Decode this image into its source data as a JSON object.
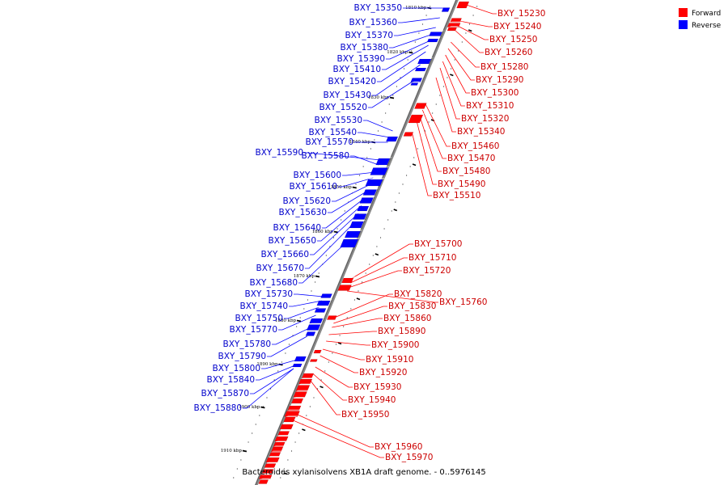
{
  "caption": "Bacteroides xylanisolvens XB1A draft genome. - 0..5976145",
  "legend": [
    {
      "label": "Forward",
      "color": "#ff0000"
    },
    {
      "label": "Reverse",
      "color": "#0000ff"
    }
  ],
  "colors": {
    "forward_block": "#ff0000",
    "forward_label": "#cc0000",
    "reverse_block": "#0000ff",
    "reverse_label": "#0000cc",
    "backbone": "#888888"
  },
  "ticks": [
    "1810 kbp",
    "1820 kbp",
    "1830 kbp",
    "1840 kbp",
    "1850 kbp",
    "1860 kbp",
    "1870 kbp",
    "1880 kbp",
    "1890 kbp",
    "1900 kbp",
    "1910 kbp"
  ],
  "forward_genes": [
    "BXY_15230",
    "BXY_15240",
    "BXY_15250",
    "BXY_15260",
    "BXY_15280",
    "BXY_15290",
    "BXY_15300",
    "BXY_15310",
    "BXY_15320",
    "BXY_15340",
    "BXY_15460",
    "BXY_15470",
    "BXY_15480",
    "BXY_15490",
    "BXY_15510",
    "BXY_15700",
    "BXY_15710",
    "BXY_15720",
    "BXY_15820",
    "BXY_15760",
    "BXY_15830",
    "BXY_15860",
    "BXY_15890",
    "BXY_15900",
    "BXY_15910",
    "BXY_15920",
    "BXY_15930",
    "BXY_15940",
    "BXY_15950",
    "BXY_15960",
    "BXY_15970"
  ],
  "reverse_genes": [
    "BXY_15350",
    "BXY_15360",
    "BXY_15370",
    "BXY_15380",
    "BXY_15390",
    "BXY_15410",
    "BXY_15420",
    "BXY_15430",
    "BXY_15520",
    "BXY_15530",
    "BXY_15540",
    "BXY_15570",
    "BXY_15590",
    "BXY_15580",
    "BXY_15600",
    "BXY_15610",
    "BXY_15620",
    "BXY_15630",
    "BXY_15640",
    "BXY_15650",
    "BXY_15660",
    "BXY_15670",
    "BXY_15680",
    "BXY_15730",
    "BXY_15740",
    "BXY_15750",
    "BXY_15770",
    "BXY_15780",
    "BXY_15790",
    "BXY_15800",
    "BXY_15840",
    "BXY_15870",
    "BXY_15880"
  ]
}
